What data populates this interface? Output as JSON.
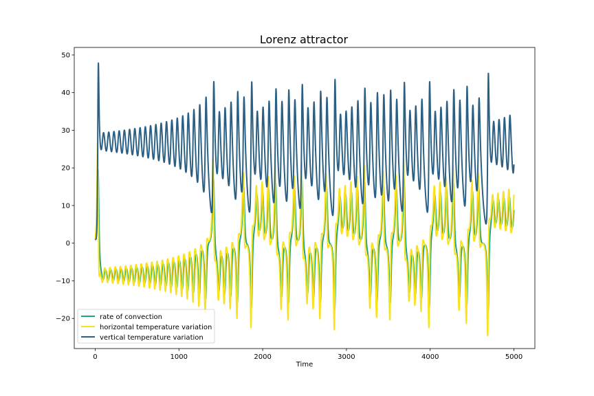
{
  "chart_data": {
    "type": "line",
    "title": "Lorenz attractor",
    "xlabel": "Time",
    "ylabel": "",
    "xlim": [
      -250,
      5250
    ],
    "ylim": [
      -28,
      52
    ],
    "xticks": [
      0,
      1000,
      2000,
      3000,
      4000,
      5000
    ],
    "yticks": [
      -20,
      -10,
      0,
      10,
      20,
      30,
      40,
      50
    ],
    "grid": false,
    "legend_position": "lower-left",
    "series": [
      {
        "name": "rate of convection",
        "color": "#21a47a",
        "description_values": "green oscillating series"
      },
      {
        "name": "horizontal temperature variation",
        "color": "#f9e21c"
      },
      {
        "name": "vertical temperature variation",
        "color": "#2b6084"
      }
    ],
    "events": [
      {
        "t": 0,
        "z_peak": 48,
        "z_low": 25,
        "start": [
          1,
          1,
          1
        ]
      },
      {
        "t": 1430,
        "y_peak": 18,
        "z_peak": 41
      },
      {
        "t": 1560,
        "y_peak": 17,
        "z_peak": 42
      },
      {
        "t": 1940,
        "y_peak": 18,
        "z_peak": 40
      },
      {
        "t": 2100,
        "y_peak": 19,
        "z_peak": 44
      },
      {
        "t": 2480,
        "y_peak": 20,
        "z_peak": 41
      },
      {
        "t": 2800,
        "y_peak": 19,
        "z_peak": 42
      },
      {
        "t": 3230,
        "y_peak": -25,
        "z_peak": 45
      },
      {
        "t": 3830,
        "y_peak": -24,
        "z_peak": 41
      },
      {
        "t": 4290,
        "y_peak": -21,
        "z_peak": 41
      },
      {
        "t": 4560,
        "y_peak": -25,
        "z_peak": 45
      }
    ]
  }
}
